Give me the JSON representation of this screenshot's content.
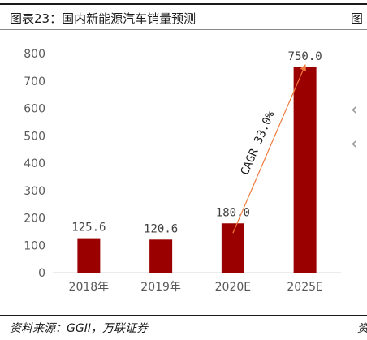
{
  "header": {
    "title": "图表23：国内新能源汽车销量预测",
    "title_cut": "图"
  },
  "footer": {
    "source": "资料来源：GGII，万联证券",
    "source_cut": "资"
  },
  "colors": {
    "bar": "#9b0000",
    "arrow": "#f07b3f",
    "rule": "#1a1a1a"
  },
  "chart_data": {
    "type": "bar",
    "categories": [
      "2018年",
      "2019年",
      "2020E",
      "2025E"
    ],
    "values": [
      125.6,
      120.6,
      180.0,
      750.0
    ],
    "data_labels": [
      "125.6",
      "120.6",
      "180.0",
      "750.0"
    ],
    "title": "",
    "xlabel": "",
    "ylabel": "",
    "ylim": [
      0,
      800
    ],
    "yticks": [
      0,
      100,
      200,
      300,
      400,
      500,
      600,
      700,
      800
    ],
    "grid": false,
    "legend": "none",
    "annotation": {
      "text": "CAGR 33.0%",
      "from_category": "2020E",
      "to_category": "2025E"
    }
  }
}
